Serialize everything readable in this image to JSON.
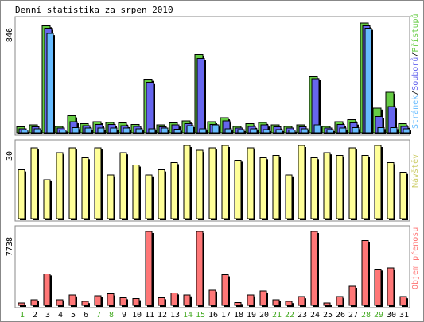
{
  "title": "Denní statistika za srpen 2010",
  "colors": {
    "hits": "#66cc44",
    "files": "#6666ee",
    "pages": "#66bbff",
    "visits": "#ffff99",
    "traffic": "#ff7777",
    "weekend": "#44aa22",
    "weekday": "#000000",
    "panel_bg": "#ffffff",
    "frame": "#888888"
  },
  "chart_data": [
    {
      "type": "bar",
      "panel": "top",
      "ylabel": "846",
      "ymax": 846,
      "categories": [
        "1",
        "2",
        "3",
        "4",
        "5",
        "6",
        "7",
        "8",
        "9",
        "10",
        "11",
        "12",
        "13",
        "14",
        "15",
        "16",
        "17",
        "18",
        "19",
        "20",
        "21",
        "22",
        "23",
        "24",
        "25",
        "26",
        "27",
        "28",
        "29",
        "30",
        "31"
      ],
      "weekend_days": [
        "1",
        "7",
        "8",
        "14",
        "15",
        "21",
        "22",
        "28",
        "29"
      ],
      "series": [
        {
          "name": "Přístupů",
          "values": [
            45,
            60,
            820,
            50,
            130,
            70,
            85,
            80,
            75,
            65,
            410,
            60,
            75,
            90,
            600,
            85,
            115,
            50,
            70,
            80,
            60,
            50,
            60,
            430,
            50,
            85,
            100,
            840,
            190,
            310,
            70
          ]
        },
        {
          "name": "Souborů",
          "values": [
            30,
            45,
            800,
            35,
            85,
            55,
            65,
            65,
            55,
            50,
            385,
            45,
            60,
            70,
            570,
            65,
            90,
            35,
            50,
            60,
            45,
            35,
            45,
            415,
            35,
            65,
            75,
            820,
            125,
            200,
            50
          ]
        },
        {
          "name": "Stránek",
          "values": [
            20,
            30,
            760,
            22,
            40,
            35,
            35,
            35,
            35,
            30,
            30,
            35,
            28,
            55,
            30,
            60,
            30,
            25,
            30,
            25,
            25,
            20,
            30,
            60,
            25,
            35,
            40,
            800,
            40,
            40,
            30
          ]
        }
      ]
    },
    {
      "type": "bar",
      "panel": "middle",
      "ylabel": "30",
      "ymax": 30,
      "series": [
        {
          "name": "Návštěv",
          "values": [
            20,
            29,
            16,
            27,
            29,
            25,
            29,
            18,
            27,
            22,
            18,
            20,
            23,
            33,
            28,
            29,
            30,
            24,
            29,
            25,
            26,
            18,
            31,
            25,
            27,
            26,
            29,
            26,
            30,
            23,
            19
          ]
        }
      ]
    },
    {
      "type": "bar",
      "panel": "bottom",
      "ylabel": "7738",
      "ymax": 7738,
      "series": [
        {
          "name": "Objem přenosu",
          "values": [
            250,
            600,
            3300,
            600,
            1100,
            400,
            1000,
            1200,
            800,
            700,
            8500,
            800,
            1300,
            1100,
            8500,
            1600,
            3200,
            300,
            1100,
            1500,
            600,
            400,
            900,
            9200,
            250,
            900,
            2000,
            6800,
            3800,
            3900,
            900
          ]
        }
      ]
    }
  ]
}
